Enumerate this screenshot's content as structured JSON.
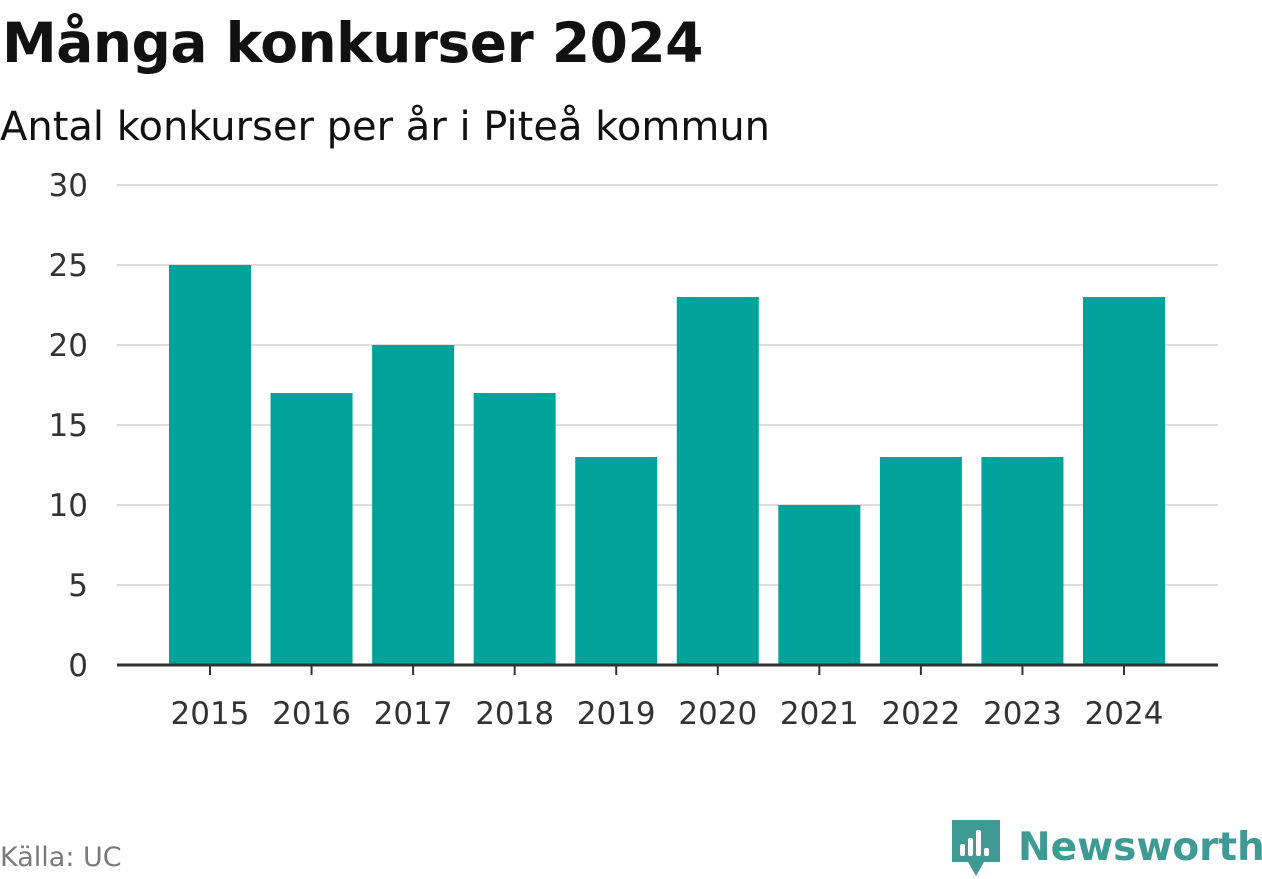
{
  "title": "Många konkurser 2024",
  "subtitle": "Antal konkurser per år i Piteå kommun",
  "source": "Källa: UC",
  "brand": {
    "name": "Newsworthy",
    "icon": "newsworthy-logo-icon",
    "color": "#3f9a94"
  },
  "colors": {
    "bar": "#00a39a",
    "grid": "#dddddd",
    "axis": "#333333",
    "tick_text": "#333333"
  },
  "chart_data": {
    "type": "bar",
    "title": "Många konkurser 2024",
    "subtitle": "Antal konkurser per år i Piteå kommun",
    "categories": [
      "2015",
      "2016",
      "2017",
      "2018",
      "2019",
      "2020",
      "2021",
      "2022",
      "2023",
      "2024"
    ],
    "values": [
      25,
      17,
      20,
      17,
      13,
      23,
      10,
      13,
      13,
      23
    ],
    "ylim": [
      0,
      30
    ],
    "yticks": [
      0,
      5,
      10,
      15,
      20,
      25,
      30
    ],
    "xlabel": "",
    "ylabel": "",
    "grid": true,
    "legend": "none"
  }
}
